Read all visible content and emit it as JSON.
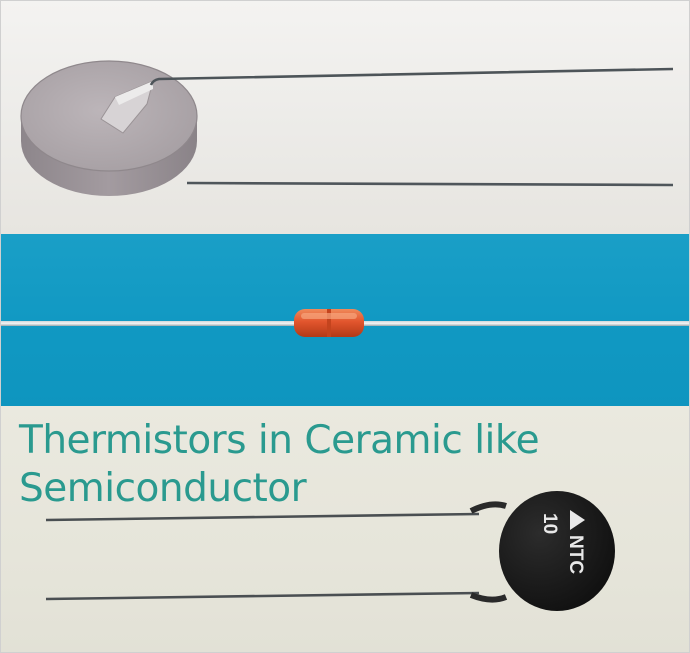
{
  "caption": {
    "line1": "Thermistors in Ceramic like",
    "line2": "Semiconductor"
  },
  "components": {
    "ntc_marking": "NTC",
    "ntc_value": "10"
  },
  "colors": {
    "caption_text": "#2a9a8f",
    "blue_panel": "#1199c3",
    "ceramic_disc": "#a9a1a6",
    "glass_bead": "#e2552d",
    "ntc_body": "#161616"
  }
}
